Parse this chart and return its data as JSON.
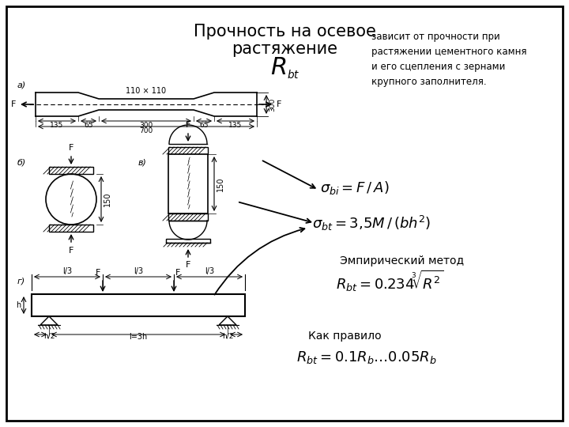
{
  "title_line1": "Прочность на осевое",
  "title_line2": "растяжение",
  "bg_color": "#ffffff",
  "right_text": "зависит от прочности при\nрастяжении цементного камня\nи его сцепления с зернами\nкрупного заполнителя.",
  "label_a": "а)",
  "label_b": "б)",
  "label_v": "в)",
  "label_g": "г)"
}
